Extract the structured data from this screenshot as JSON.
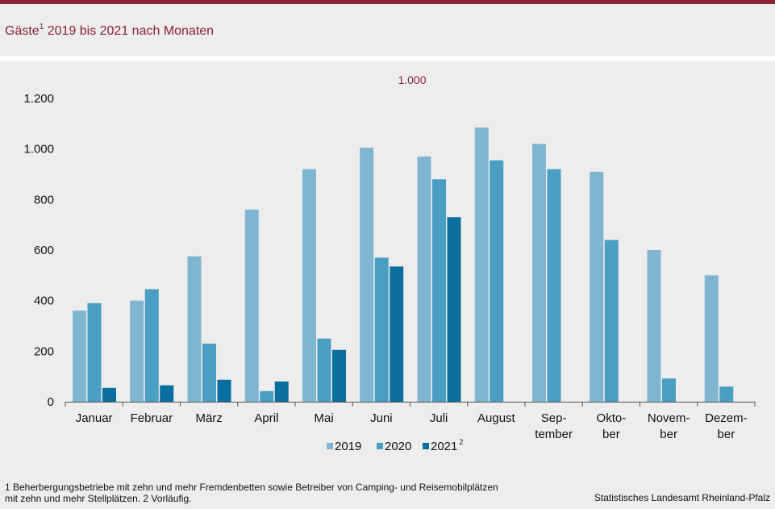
{
  "title": {
    "text": "Gäste",
    "sup": "1",
    "rest": " 2019  bis  2021  nach  Monaten"
  },
  "colors": {
    "accent": "#8c2233",
    "s2019": "#7fb5d1",
    "s2020": "#4a9ec2",
    "s2021": "#0a6f9e"
  },
  "chart_data": {
    "type": "bar",
    "annotation": "1.000",
    "ylim": [
      0,
      1200
    ],
    "yticks": [
      0,
      200,
      400,
      600,
      800,
      1000,
      1200
    ],
    "ytick_labels": [
      "0",
      "200",
      "400",
      "600",
      "800",
      "1.000",
      "1.200"
    ],
    "categories": [
      "Januar",
      "Februar",
      "März",
      "April",
      "Mai",
      "Juni",
      "Juli",
      "August",
      "Sep-\ntember",
      "Okto-\nber",
      "Novem-\nber",
      "Dezem-\nber"
    ],
    "series": [
      {
        "name": "2019",
        "sup": "",
        "values": [
          360,
          400,
          575,
          760,
          920,
          1005,
          970,
          1085,
          1020,
          910,
          600,
          500
        ]
      },
      {
        "name": "2020",
        "sup": "",
        "values": [
          390,
          445,
          230,
          42,
          250,
          570,
          880,
          955,
          920,
          640,
          92,
          60
        ]
      },
      {
        "name": "2021",
        "sup": "2",
        "values": [
          55,
          65,
          87,
          80,
          205,
          535,
          730,
          null,
          null,
          null,
          null,
          null
        ]
      }
    ],
    "legend": "bottom-center"
  },
  "footnote": "1 Beherbergungsbetriebe  mit zehn und mehr Fremdenbetten  sowie Betreiber von Camping-  und Reisemobilplätzen\n mit zehn und mehr Stellplätzen. 2 Vorläufig.",
  "source": "Statistisches Landesamt Rheinland-Pfalz"
}
